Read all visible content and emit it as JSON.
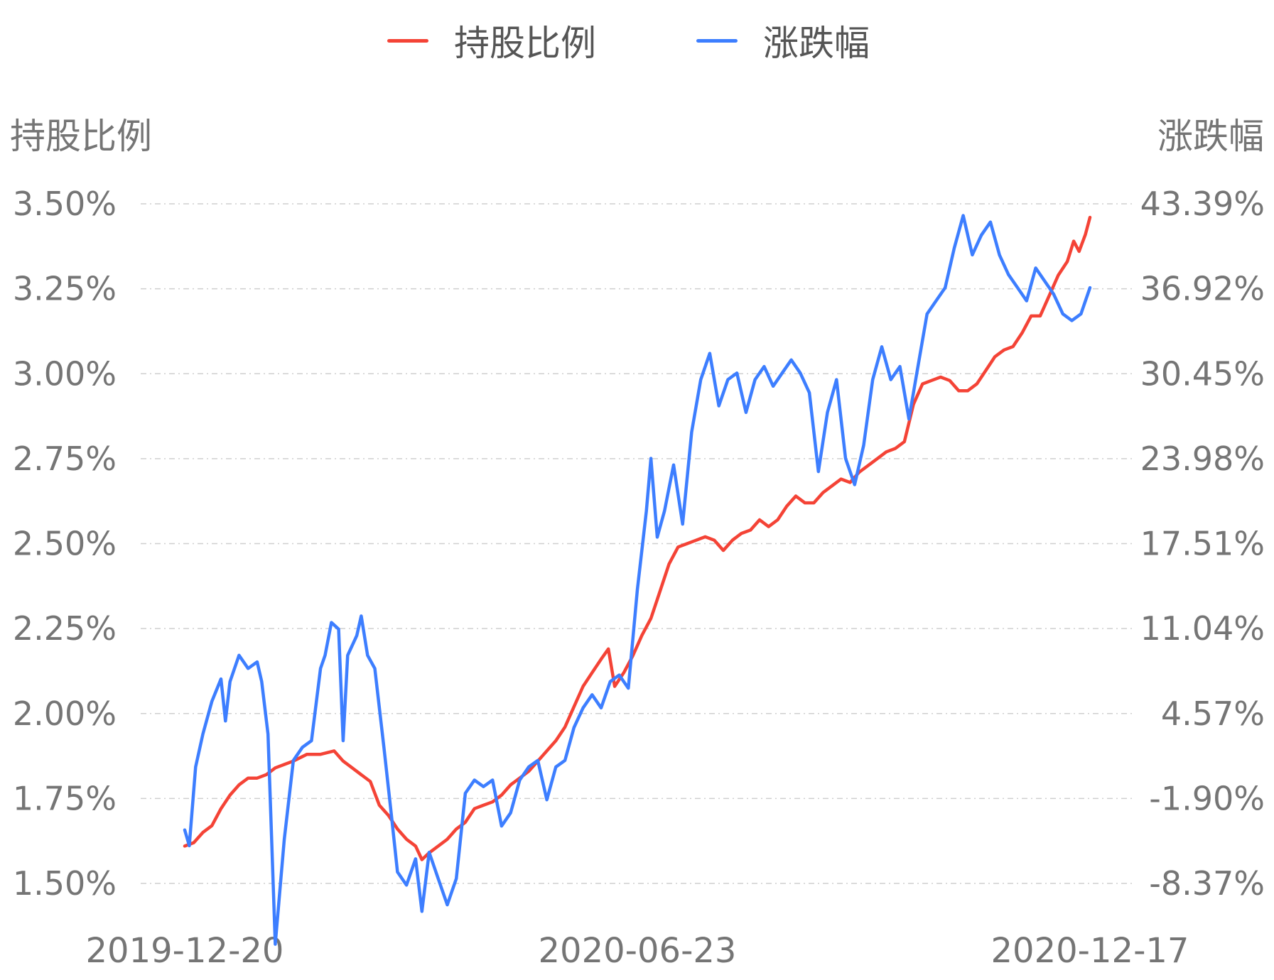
{
  "chart_data": {
    "type": "line",
    "legend": {
      "position": "top-center",
      "entries": [
        "持股比例",
        "涨跌幅"
      ]
    },
    "grid": true,
    "y_left": {
      "title": "持股比例",
      "ticks": [
        "1.50%",
        "1.75%",
        "2.00%",
        "2.25%",
        "2.50%",
        "2.75%",
        "3.00%",
        "3.25%",
        "3.50%"
      ],
      "range": [
        1.5,
        3.5
      ]
    },
    "y_right": {
      "title": "涨跌幅",
      "ticks": [
        "-8.37%",
        "-1.90%",
        "4.57%",
        "11.04%",
        "17.51%",
        "23.98%",
        "30.45%",
        "36.92%",
        "43.39%"
      ],
      "range": [
        -8.37,
        43.39
      ]
    },
    "x_ticks": [
      {
        "label": "2019-12-20",
        "pos": 0.0
      },
      {
        "label": "2020-06-23",
        "pos": 0.5
      },
      {
        "label": "2020-12-17",
        "pos": 1.0
      }
    ],
    "series": [
      {
        "name": "持股比例",
        "color": "#f44336",
        "axis": "left",
        "points": [
          [
            0.0,
            1.61
          ],
          [
            0.01,
            1.62
          ],
          [
            0.02,
            1.65
          ],
          [
            0.03,
            1.67
          ],
          [
            0.04,
            1.72
          ],
          [
            0.05,
            1.76
          ],
          [
            0.06,
            1.79
          ],
          [
            0.07,
            1.81
          ],
          [
            0.08,
            1.81
          ],
          [
            0.09,
            1.82
          ],
          [
            0.1,
            1.84
          ],
          [
            0.11,
            1.85
          ],
          [
            0.12,
            1.86
          ],
          [
            0.135,
            1.88
          ],
          [
            0.15,
            1.88
          ],
          [
            0.165,
            1.89
          ],
          [
            0.175,
            1.86
          ],
          [
            0.185,
            1.84
          ],
          [
            0.195,
            1.82
          ],
          [
            0.205,
            1.8
          ],
          [
            0.215,
            1.73
          ],
          [
            0.225,
            1.7
          ],
          [
            0.235,
            1.66
          ],
          [
            0.245,
            1.63
          ],
          [
            0.255,
            1.61
          ],
          [
            0.262,
            1.57
          ],
          [
            0.27,
            1.59
          ],
          [
            0.28,
            1.61
          ],
          [
            0.29,
            1.63
          ],
          [
            0.3,
            1.66
          ],
          [
            0.31,
            1.68
          ],
          [
            0.32,
            1.72
          ],
          [
            0.33,
            1.73
          ],
          [
            0.34,
            1.74
          ],
          [
            0.35,
            1.76
          ],
          [
            0.36,
            1.79
          ],
          [
            0.37,
            1.81
          ],
          [
            0.38,
            1.83
          ],
          [
            0.39,
            1.86
          ],
          [
            0.4,
            1.89
          ],
          [
            0.41,
            1.92
          ],
          [
            0.42,
            1.96
          ],
          [
            0.43,
            2.02
          ],
          [
            0.44,
            2.08
          ],
          [
            0.45,
            2.12
          ],
          [
            0.46,
            2.16
          ],
          [
            0.468,
            2.19
          ],
          [
            0.475,
            2.08
          ],
          [
            0.485,
            2.12
          ],
          [
            0.495,
            2.17
          ],
          [
            0.505,
            2.23
          ],
          [
            0.515,
            2.28
          ],
          [
            0.525,
            2.36
          ],
          [
            0.535,
            2.44
          ],
          [
            0.545,
            2.49
          ],
          [
            0.555,
            2.5
          ],
          [
            0.565,
            2.51
          ],
          [
            0.575,
            2.52
          ],
          [
            0.585,
            2.51
          ],
          [
            0.595,
            2.48
          ],
          [
            0.605,
            2.51
          ],
          [
            0.615,
            2.53
          ],
          [
            0.625,
            2.54
          ],
          [
            0.635,
            2.57
          ],
          [
            0.645,
            2.55
          ],
          [
            0.655,
            2.57
          ],
          [
            0.665,
            2.61
          ],
          [
            0.675,
            2.64
          ],
          [
            0.685,
            2.62
          ],
          [
            0.695,
            2.62
          ],
          [
            0.705,
            2.65
          ],
          [
            0.715,
            2.67
          ],
          [
            0.725,
            2.69
          ],
          [
            0.735,
            2.68
          ],
          [
            0.745,
            2.71
          ],
          [
            0.755,
            2.73
          ],
          [
            0.765,
            2.75
          ],
          [
            0.775,
            2.77
          ],
          [
            0.785,
            2.78
          ],
          [
            0.795,
            2.8
          ],
          [
            0.805,
            2.91
          ],
          [
            0.815,
            2.97
          ],
          [
            0.825,
            2.98
          ],
          [
            0.835,
            2.99
          ],
          [
            0.845,
            2.98
          ],
          [
            0.855,
            2.95
          ],
          [
            0.865,
            2.95
          ],
          [
            0.875,
            2.97
          ],
          [
            0.885,
            3.01
          ],
          [
            0.895,
            3.05
          ],
          [
            0.905,
            3.07
          ],
          [
            0.915,
            3.08
          ],
          [
            0.925,
            3.12
          ],
          [
            0.935,
            3.17
          ],
          [
            0.945,
            3.17
          ],
          [
            0.955,
            3.23
          ],
          [
            0.965,
            3.29
          ],
          [
            0.975,
            3.33
          ],
          [
            0.982,
            3.39
          ],
          [
            0.988,
            3.36
          ],
          [
            0.995,
            3.41
          ],
          [
            1.0,
            3.46
          ]
        ]
      },
      {
        "name": "涨跌幅",
        "color": "#3d7eff",
        "axis": "right",
        "points": [
          [
            0.0,
            -4.3
          ],
          [
            0.005,
            -5.5
          ],
          [
            0.012,
            0.5
          ],
          [
            0.02,
            3.0
          ],
          [
            0.03,
            5.5
          ],
          [
            0.04,
            7.2
          ],
          [
            0.045,
            4.0
          ],
          [
            0.05,
            7.0
          ],
          [
            0.06,
            9.0
          ],
          [
            0.07,
            8.0
          ],
          [
            0.08,
            8.5
          ],
          [
            0.085,
            7.0
          ],
          [
            0.092,
            3.0
          ],
          [
            0.1,
            -13.0
          ],
          [
            0.11,
            -5.0
          ],
          [
            0.12,
            1.0
          ],
          [
            0.13,
            2.0
          ],
          [
            0.14,
            2.5
          ],
          [
            0.15,
            8.0
          ],
          [
            0.155,
            9.0
          ],
          [
            0.162,
            11.5
          ],
          [
            0.17,
            11.0
          ],
          [
            0.175,
            2.5
          ],
          [
            0.18,
            9.0
          ],
          [
            0.19,
            10.5
          ],
          [
            0.195,
            12.0
          ],
          [
            0.202,
            9.0
          ],
          [
            0.21,
            8.0
          ],
          [
            0.22,
            2.0
          ],
          [
            0.228,
            -3.0
          ],
          [
            0.235,
            -7.5
          ],
          [
            0.245,
            -8.5
          ],
          [
            0.255,
            -6.5
          ],
          [
            0.262,
            -10.5
          ],
          [
            0.27,
            -6.0
          ],
          [
            0.28,
            -8.0
          ],
          [
            0.29,
            -10.0
          ],
          [
            0.3,
            -8.0
          ],
          [
            0.31,
            -1.5
          ],
          [
            0.32,
            -0.5
          ],
          [
            0.33,
            -1.0
          ],
          [
            0.34,
            -0.5
          ],
          [
            0.35,
            -4.0
          ],
          [
            0.36,
            -3.0
          ],
          [
            0.37,
            -0.5
          ],
          [
            0.38,
            0.5
          ],
          [
            0.39,
            1.0
          ],
          [
            0.4,
            -2.0
          ],
          [
            0.41,
            0.5
          ],
          [
            0.42,
            1.0
          ],
          [
            0.43,
            3.5
          ],
          [
            0.44,
            5.0
          ],
          [
            0.45,
            6.0
          ],
          [
            0.46,
            5.0
          ],
          [
            0.47,
            7.0
          ],
          [
            0.48,
            7.5
          ],
          [
            0.49,
            6.5
          ],
          [
            0.5,
            14.0
          ],
          [
            0.51,
            20.0
          ],
          [
            0.515,
            24.0
          ],
          [
            0.522,
            18.0
          ],
          [
            0.53,
            20.0
          ],
          [
            0.54,
            23.5
          ],
          [
            0.55,
            19.0
          ],
          [
            0.56,
            26.0
          ],
          [
            0.57,
            30.0
          ],
          [
            0.58,
            32.0
          ],
          [
            0.59,
            28.0
          ],
          [
            0.6,
            30.0
          ],
          [
            0.61,
            30.5
          ],
          [
            0.62,
            27.5
          ],
          [
            0.63,
            30.0
          ],
          [
            0.64,
            31.0
          ],
          [
            0.65,
            29.5
          ],
          [
            0.66,
            30.5
          ],
          [
            0.67,
            31.5
          ],
          [
            0.68,
            30.5
          ],
          [
            0.69,
            29.0
          ],
          [
            0.7,
            23.0
          ],
          [
            0.71,
            27.5
          ],
          [
            0.72,
            30.0
          ],
          [
            0.73,
            24.0
          ],
          [
            0.74,
            22.0
          ],
          [
            0.75,
            25.0
          ],
          [
            0.76,
            30.0
          ],
          [
            0.77,
            32.5
          ],
          [
            0.78,
            30.0
          ],
          [
            0.79,
            31.0
          ],
          [
            0.8,
            27.0
          ],
          [
            0.81,
            31.0
          ],
          [
            0.82,
            35.0
          ],
          [
            0.83,
            36.0
          ],
          [
            0.84,
            37.0
          ],
          [
            0.85,
            40.0
          ],
          [
            0.86,
            42.5
          ],
          [
            0.87,
            39.5
          ],
          [
            0.88,
            41.0
          ],
          [
            0.89,
            42.0
          ],
          [
            0.9,
            39.5
          ],
          [
            0.91,
            38.0
          ],
          [
            0.92,
            37.0
          ],
          [
            0.93,
            36.0
          ],
          [
            0.94,
            38.5
          ],
          [
            0.95,
            37.5
          ],
          [
            0.96,
            36.5
          ],
          [
            0.97,
            35.0
          ],
          [
            0.98,
            34.5
          ],
          [
            0.99,
            35.0
          ],
          [
            1.0,
            37.0
          ]
        ]
      }
    ]
  }
}
